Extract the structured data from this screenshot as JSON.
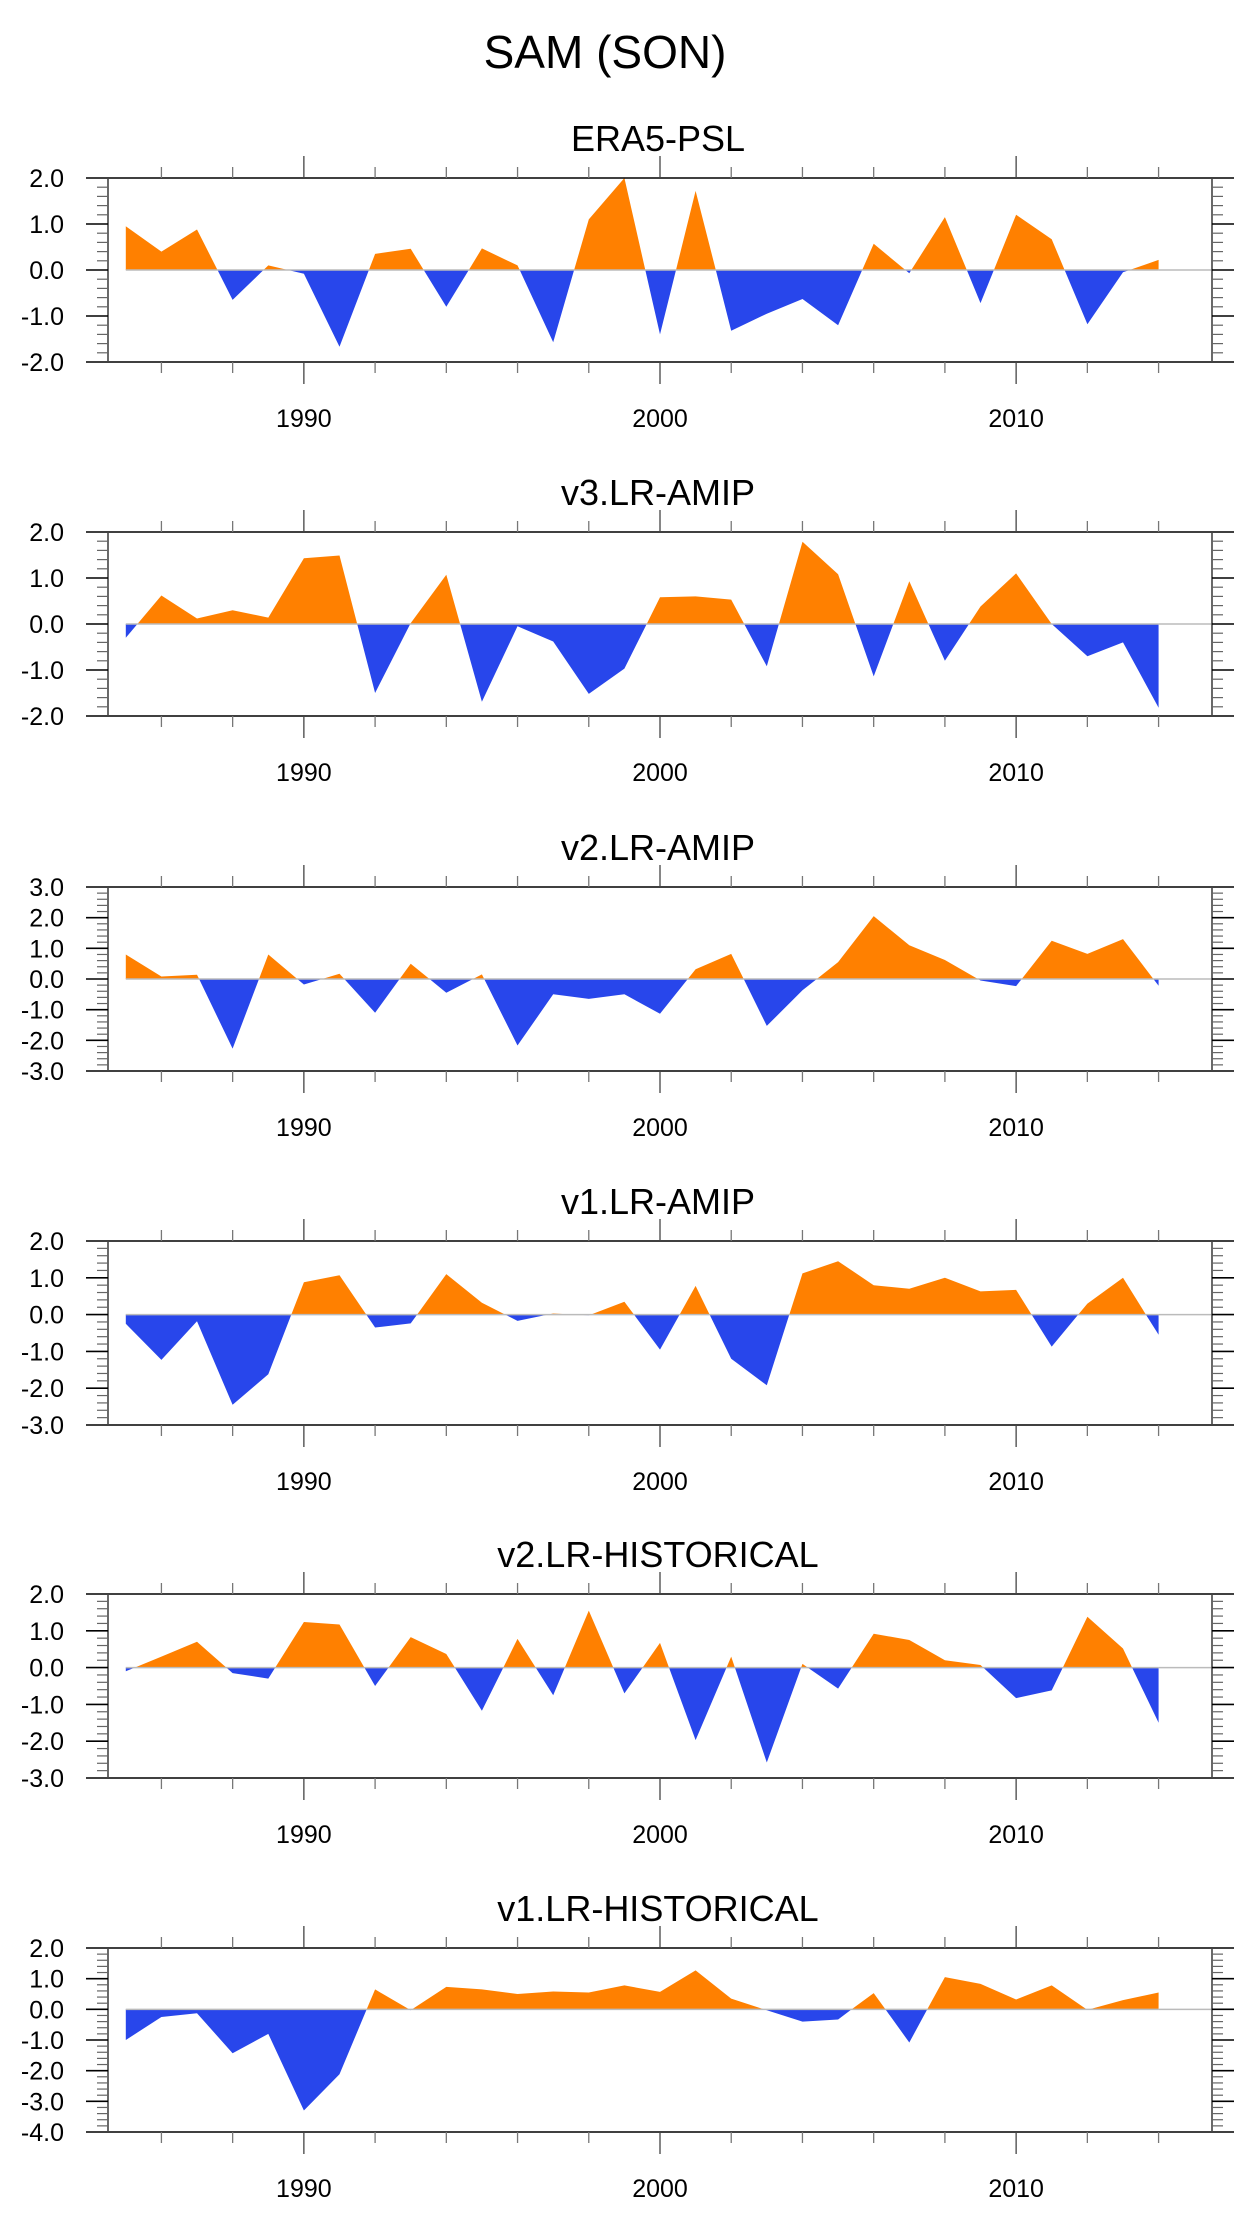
{
  "figure": {
    "title": "SAM (SON)"
  },
  "colors": {
    "positive": "#FF8000",
    "negative": "#2846EB",
    "zero_line": "#BBBBBB",
    "axis": "#000000"
  },
  "chart_data": [
    {
      "type": "area",
      "title": "ERA5-PSL",
      "xlabel": "",
      "ylabel": "",
      "x": [
        1985,
        1986,
        1987,
        1988,
        1989,
        1990,
        1991,
        1992,
        1993,
        1994,
        1995,
        1996,
        1997,
        1998,
        1999,
        2000,
        2001,
        2002,
        2003,
        2004,
        2005,
        2006,
        2007,
        2008,
        2009,
        2010,
        2011,
        2012,
        2013,
        2014
      ],
      "values": [
        0.95,
        0.4,
        0.88,
        -0.65,
        0.1,
        -0.08,
        -1.67,
        0.35,
        0.46,
        -0.8,
        0.47,
        0.1,
        -1.57,
        1.1,
        2.0,
        -1.4,
        1.72,
        -1.32,
        -0.95,
        -0.63,
        -1.2,
        0.57,
        -0.07,
        1.15,
        -0.72,
        1.2,
        0.67,
        -1.18,
        -0.05,
        0.22
      ],
      "ylim": [
        -2.0,
        2.0
      ],
      "yticks": [
        "2.0",
        "1.0",
        "0.0",
        "-1.0",
        "-2.0"
      ],
      "ytick_values": [
        2,
        1,
        0,
        -1,
        -2
      ],
      "xlim": [
        1984.5,
        2015.5
      ],
      "xtick_labels": [
        "1990",
        "2000",
        "2010"
      ],
      "xtick_values": [
        1990,
        2000,
        2010
      ],
      "fill": "positive above zero, negative below zero"
    },
    {
      "type": "area",
      "title": "v3.LR-AMIP",
      "xlabel": "",
      "ylabel": "",
      "x": [
        1985,
        1986,
        1987,
        1988,
        1989,
        1990,
        1991,
        1992,
        1993,
        1994,
        1995,
        1996,
        1997,
        1998,
        1999,
        2000,
        2001,
        2002,
        2003,
        2004,
        2005,
        2006,
        2007,
        2008,
        2009,
        2010,
        2011,
        2012,
        2013,
        2014
      ],
      "values": [
        -0.3,
        0.62,
        0.12,
        0.3,
        0.14,
        1.43,
        1.49,
        -1.5,
        0.02,
        1.07,
        -1.69,
        -0.05,
        -0.38,
        -1.52,
        -0.97,
        0.58,
        0.6,
        0.53,
        -0.92,
        1.79,
        1.08,
        -1.14,
        0.93,
        -0.8,
        0.38,
        1.1,
        0.0,
        -0.7,
        -0.4,
        -1.82
      ],
      "ylim": [
        -2.0,
        2.0
      ],
      "yticks": [
        "2.0",
        "1.0",
        "0.0",
        "-1.0",
        "-2.0"
      ],
      "ytick_values": [
        2,
        1,
        0,
        -1,
        -2
      ],
      "xlim": [
        1984.5,
        2015.5
      ],
      "xtick_labels": [
        "1990",
        "2000",
        "2010"
      ],
      "xtick_values": [
        1990,
        2000,
        2010
      ],
      "fill": "positive above zero, negative below zero"
    },
    {
      "type": "area",
      "title": "v2.LR-AMIP",
      "xlabel": "",
      "ylabel": "",
      "x": [
        1985,
        1986,
        1987,
        1988,
        1989,
        1990,
        1991,
        1992,
        1993,
        1994,
        1995,
        1996,
        1997,
        1998,
        1999,
        2000,
        2001,
        2002,
        2003,
        2004,
        2005,
        2006,
        2007,
        2008,
        2009,
        2010,
        2011,
        2012,
        2013,
        2014
      ],
      "values": [
        0.8,
        0.08,
        0.14,
        -2.27,
        0.8,
        -0.18,
        0.17,
        -1.1,
        0.5,
        -0.45,
        0.15,
        -2.17,
        -0.5,
        -0.65,
        -0.5,
        -1.13,
        0.32,
        0.82,
        -1.53,
        -0.37,
        0.55,
        2.05,
        1.1,
        0.62,
        -0.05,
        -0.23,
        1.25,
        0.82,
        1.3,
        -0.22
      ],
      "ylim": [
        -3.0,
        3.0
      ],
      "yticks": [
        "3.0",
        "2.0",
        "1.0",
        "0.0",
        "-1.0",
        "-2.0",
        "-3.0"
      ],
      "ytick_values": [
        3,
        2,
        1,
        0,
        -1,
        -2,
        -3
      ],
      "xlim": [
        1984.5,
        2015.5
      ],
      "xtick_labels": [
        "1990",
        "2000",
        "2010"
      ],
      "xtick_values": [
        1990,
        2000,
        2010
      ],
      "fill": "positive above zero, negative below zero"
    },
    {
      "type": "area",
      "title": "v1.LR-AMIP",
      "xlabel": "",
      "ylabel": "",
      "x": [
        1985,
        1986,
        1987,
        1988,
        1989,
        1990,
        1991,
        1992,
        1993,
        1994,
        1995,
        1996,
        1997,
        1998,
        1999,
        2000,
        2001,
        2002,
        2003,
        2004,
        2005,
        2006,
        2007,
        2008,
        2009,
        2010,
        2011,
        2012,
        2013,
        2014
      ],
      "values": [
        -0.25,
        -1.23,
        -0.18,
        -2.45,
        -1.62,
        0.88,
        1.07,
        -0.35,
        -0.24,
        1.1,
        0.32,
        -0.17,
        0.03,
        -0.02,
        0.35,
        -0.95,
        0.78,
        -1.2,
        -1.92,
        1.12,
        1.45,
        0.8,
        0.7,
        1.0,
        0.63,
        0.67,
        -0.87,
        0.3,
        1.0,
        -0.55
      ],
      "ylim": [
        -3.0,
        2.0
      ],
      "yticks": [
        "2.0",
        "1.0",
        "0.0",
        "-1.0",
        "-2.0",
        "-3.0"
      ],
      "ytick_values": [
        2,
        1,
        0,
        -1,
        -2,
        -3
      ],
      "xlim": [
        1984.5,
        2015.5
      ],
      "xtick_labels": [
        "1990",
        "2000",
        "2010"
      ],
      "xtick_values": [
        1990,
        2000,
        2010
      ],
      "fill": "positive above zero, negative below zero"
    },
    {
      "type": "area",
      "title": "v2.LR-HISTORICAL",
      "xlabel": "",
      "ylabel": "",
      "x": [
        1985,
        1986,
        1987,
        1988,
        1989,
        1990,
        1991,
        1992,
        1993,
        1994,
        1995,
        1996,
        1997,
        1998,
        1999,
        2000,
        2001,
        2002,
        2003,
        2004,
        2005,
        2006,
        2007,
        2008,
        2009,
        2010,
        2011,
        2012,
        2013,
        2014
      ],
      "values": [
        -0.1,
        0.3,
        0.7,
        -0.15,
        -0.3,
        1.24,
        1.17,
        -0.5,
        0.83,
        0.37,
        -1.17,
        0.78,
        -0.75,
        1.55,
        -0.7,
        0.67,
        -1.97,
        0.3,
        -2.58,
        0.1,
        -0.57,
        0.92,
        0.75,
        0.2,
        0.07,
        -0.83,
        -0.62,
        1.38,
        0.52,
        -1.5
      ],
      "ylim": [
        -3.0,
        2.0
      ],
      "yticks": [
        "2.0",
        "1.0",
        "0.0",
        "-1.0",
        "-2.0",
        "-3.0"
      ],
      "ytick_values": [
        2,
        1,
        0,
        -1,
        -2,
        -3
      ],
      "xlim": [
        1984.5,
        2015.5
      ],
      "xtick_labels": [
        "1990",
        "2000",
        "2010"
      ],
      "xtick_values": [
        1990,
        2000,
        2010
      ],
      "fill": "positive above zero, negative below zero"
    },
    {
      "type": "area",
      "title": "v1.LR-HISTORICAL",
      "xlabel": "",
      "ylabel": "",
      "x": [
        1985,
        1986,
        1987,
        1988,
        1989,
        1990,
        1991,
        1992,
        1993,
        1994,
        1995,
        1996,
        1997,
        1998,
        1999,
        2000,
        2001,
        2002,
        2003,
        2004,
        2005,
        2006,
        2007,
        2008,
        2009,
        2010,
        2011,
        2012,
        2013,
        2014
      ],
      "values": [
        -1.0,
        -0.25,
        -0.13,
        -1.43,
        -0.8,
        -3.3,
        -2.12,
        0.65,
        -0.03,
        0.73,
        0.65,
        0.5,
        0.58,
        0.55,
        0.78,
        0.57,
        1.27,
        0.35,
        -0.03,
        -0.4,
        -0.33,
        0.53,
        -1.08,
        1.05,
        0.83,
        0.32,
        0.78,
        -0.02,
        0.3,
        0.55
      ],
      "ylim": [
        -4.0,
        2.0
      ],
      "yticks": [
        "2.0",
        "1.0",
        "0.0",
        "-1.0",
        "-2.0",
        "-3.0",
        "-4.0"
      ],
      "ytick_values": [
        2,
        1,
        0,
        -1,
        -2,
        -3,
        -4
      ],
      "xlim": [
        1984.5,
        2015.5
      ],
      "xtick_labels": [
        "1990",
        "2000",
        "2010"
      ],
      "xtick_values": [
        1990,
        2000,
        2010
      ],
      "fill": "positive above zero, negative below zero"
    }
  ]
}
